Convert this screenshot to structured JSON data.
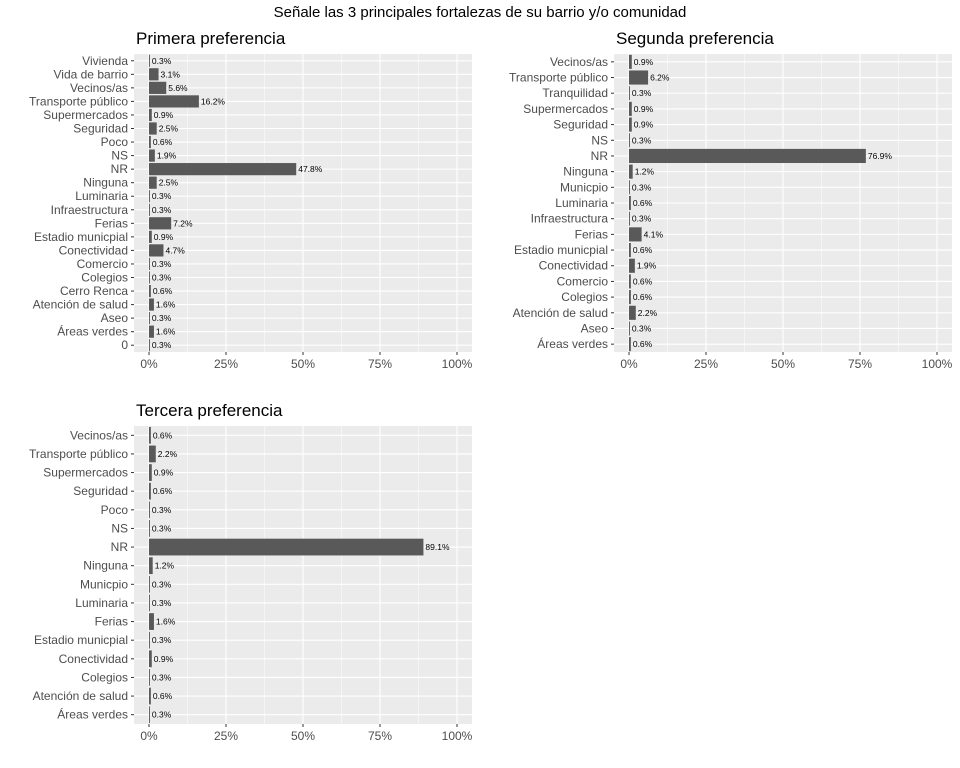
{
  "title": "Señale las 3 principales fortalezas de su barrio y/o comunidad",
  "colors": {
    "panel_bg": "#ebebeb",
    "grid": "#ffffff",
    "bar": "#595959",
    "text": "#4d4d4d"
  },
  "chart_data": [
    {
      "type": "bar",
      "orientation": "horizontal",
      "title": "Primera preferencia",
      "xlim": [
        0,
        100
      ],
      "x_ticks": [
        "0%",
        "25%",
        "50%",
        "75%",
        "100%"
      ],
      "grid": true,
      "categories": [
        "Vivienda",
        "Vida de barrio",
        "Vecinos/as",
        "Transporte público",
        "Supermercados",
        "Seguridad",
        "Poco",
        "NS",
        "NR",
        "Ninguna",
        "Luminaria",
        "Infraestructura",
        "Ferias",
        "Estadio municpial",
        "Conectividad",
        "Comercio",
        "Colegios",
        "Cerro Renca",
        "Atención de salud",
        "Aseo",
        "Áreas verdes",
        "0"
      ],
      "values": [
        0.3,
        3.1,
        5.6,
        16.2,
        0.9,
        2.5,
        0.6,
        1.9,
        47.8,
        2.5,
        0.3,
        0.3,
        7.2,
        0.9,
        4.7,
        0.3,
        0.3,
        0.6,
        1.6,
        0.3,
        1.6,
        0.3
      ],
      "labels": [
        "0.3%",
        "3.1%",
        "5.6%",
        "16.2%",
        "0.9%",
        "2.5%",
        "0.6%",
        "1.9%",
        "47.8%",
        "2.5%",
        "0.3%",
        "0.3%",
        "7.2%",
        "0.9%",
        "4.7%",
        "0.3%",
        "0.3%",
        "0.6%",
        "1.6%",
        "0.3%",
        "1.6%",
        "0.3%"
      ]
    },
    {
      "type": "bar",
      "orientation": "horizontal",
      "title": "Segunda preferencia",
      "xlim": [
        0,
        100
      ],
      "x_ticks": [
        "0%",
        "25%",
        "50%",
        "75%",
        "100%"
      ],
      "grid": true,
      "categories": [
        "Vecinos/as",
        "Transporte público",
        "Tranquilidad",
        "Supermercados",
        "Seguridad",
        "NS",
        "NR",
        "Ninguna",
        "Municpio",
        "Luminaria",
        "Infraestructura",
        "Ferias",
        "Estadio municpial",
        "Conectividad",
        "Comercio",
        "Colegios",
        "Atención de salud",
        "Aseo",
        "Áreas verdes"
      ],
      "values": [
        0.9,
        6.2,
        0.3,
        0.9,
        0.9,
        0.3,
        76.9,
        1.2,
        0.3,
        0.6,
        0.3,
        4.1,
        0.6,
        1.9,
        0.6,
        0.6,
        2.2,
        0.3,
        0.6
      ],
      "labels": [
        "0.9%",
        "6.2%",
        "0.3%",
        "0.9%",
        "0.9%",
        "0.3%",
        "76.9%",
        "1.2%",
        "0.3%",
        "0.6%",
        "0.3%",
        "4.1%",
        "0.6%",
        "1.9%",
        "0.6%",
        "0.6%",
        "2.2%",
        "0.3%",
        "0.6%"
      ]
    },
    {
      "type": "bar",
      "orientation": "horizontal",
      "title": "Tercera preferencia",
      "xlim": [
        0,
        100
      ],
      "x_ticks": [
        "0%",
        "25%",
        "50%",
        "75%",
        "100%"
      ],
      "grid": true,
      "categories": [
        "Vecinos/as",
        "Transporte público",
        "Supermercados",
        "Seguridad",
        "Poco",
        "NS",
        "NR",
        "Ninguna",
        "Municpio",
        "Luminaria",
        "Ferias",
        "Estadio municpial",
        "Conectividad",
        "Colegios",
        "Atención de salud",
        "Áreas verdes"
      ],
      "values": [
        0.6,
        2.2,
        0.9,
        0.6,
        0.3,
        0.3,
        89.1,
        1.2,
        0.3,
        0.3,
        1.6,
        0.3,
        0.9,
        0.3,
        0.6,
        0.3
      ],
      "labels": [
        "0.6%",
        "2.2%",
        "0.9%",
        "0.6%",
        "0.3%",
        "0.3%",
        "89.1%",
        "1.2%",
        "0.3%",
        "0.3%",
        "1.6%",
        "0.3%",
        "0.9%",
        "0.3%",
        "0.6%",
        "0.3%"
      ]
    }
  ]
}
